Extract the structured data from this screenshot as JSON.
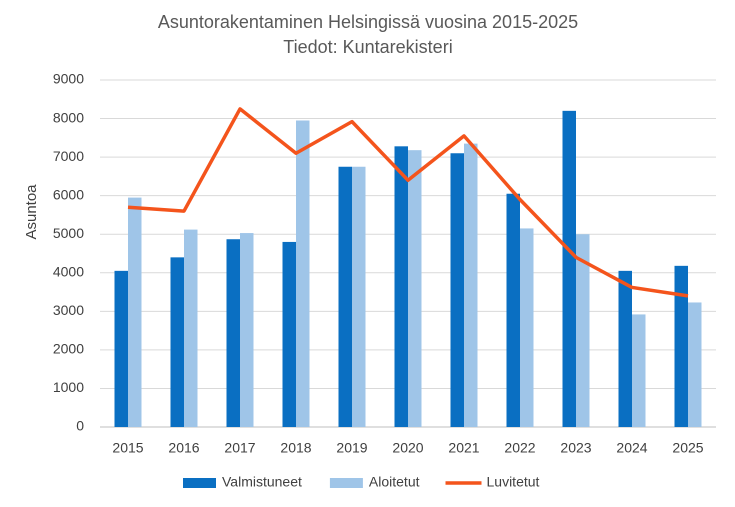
{
  "chart_data": {
    "type": "bar",
    "title": "Asuntorakentaminen Helsingissä vuosina 2015-2025",
    "subtitle": "Tiedot: Kuntarekisteri",
    "y_label": "Asuntoa",
    "categories": [
      "2015",
      "2016",
      "2017",
      "2018",
      "2019",
      "2020",
      "2021",
      "2022",
      "2023",
      "2024",
      "2025"
    ],
    "series": [
      {
        "name": "Valmistuneet",
        "type": "bar",
        "color": "#0a6fc2",
        "values": [
          4050,
          4400,
          4870,
          4800,
          6750,
          7280,
          7100,
          6050,
          8200,
          4050,
          4180
        ]
      },
      {
        "name": "Aloitetut",
        "type": "bar",
        "color": "#9fc5e8",
        "values": [
          5950,
          5120,
          5030,
          7950,
          6750,
          7180,
          7350,
          5150,
          5000,
          2920,
          3230
        ]
      },
      {
        "name": "Luvitetut",
        "type": "line",
        "color": "#f4541c",
        "values": [
          5700,
          5600,
          8250,
          7100,
          7920,
          6400,
          7550,
          5900,
          4400,
          3620,
          3400
        ]
      }
    ],
    "ylim": [
      0,
      9000
    ],
    "yticks": [
      0,
      1000,
      2000,
      3000,
      4000,
      5000,
      6000,
      7000,
      8000,
      9000
    ],
    "grid": true,
    "legend": "bottom"
  }
}
